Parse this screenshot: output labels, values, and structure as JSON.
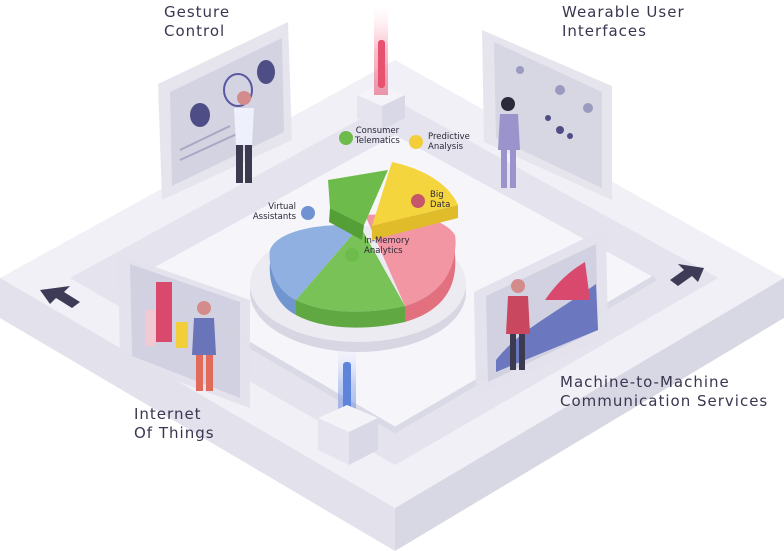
{
  "corners": {
    "gesture_control": "Gesture\nControl",
    "wearable_ui": "Wearable User\nInterfaces",
    "internet_of_things": "Internet\nOf Things",
    "m2m": "Machine-to-Machine\nCommunication Services"
  },
  "pie": {
    "consumer_telematics": "Consumer\nTelematics",
    "predictive_analysis": "Predictive\nAnalysis",
    "big_data": "Big\nData",
    "virtual_assistants": "Virtual\nAssistants",
    "in_memory_analytics": "In-Memory\nAnalytics"
  },
  "colors": {
    "green": "#6dbb4a",
    "yellow": "#f2cf3a",
    "pink": "#ef8796",
    "blue": "#88a9dc",
    "red_dot": "#c6576a",
    "text": "#3a3650"
  }
}
